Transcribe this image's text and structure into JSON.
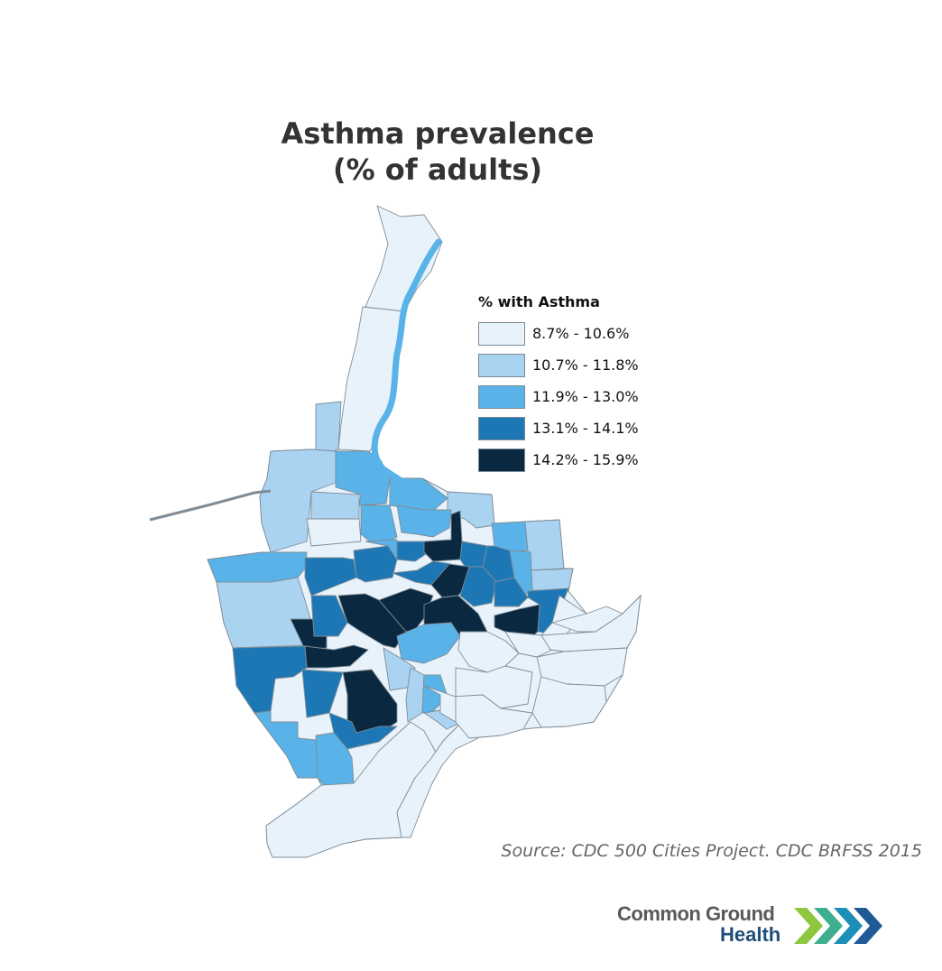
{
  "title": {
    "line1": "Asthma prevalence",
    "line2": "(% of adults)"
  },
  "legend": {
    "title": "% with Asthma",
    "classes": [
      {
        "label": "8.7% - 10.6%",
        "min": 8.7,
        "max": 10.6,
        "color": "#e8f2fb"
      },
      {
        "label": "10.7% - 11.8%",
        "min": 10.7,
        "max": 11.8,
        "color": "#aad3f2"
      },
      {
        "label": "11.9% - 13.0%",
        "min": 11.9,
        "max": 13.0,
        "color": "#5ab3e8"
      },
      {
        "label": "13.1% - 14.1%",
        "min": 13.1,
        "max": 14.1,
        "color": "#1c77b4"
      },
      {
        "label": "14.2% - 15.9%",
        "min": 14.2,
        "max": 15.9,
        "color": "#0a2940"
      }
    ]
  },
  "map": {
    "boundary_color": "#7f8c96",
    "river_color": "#5ab3e8"
  },
  "source": "Source: CDC 500 Cities Project. CDC BRFSS 2015",
  "logo": {
    "line1": "Common Ground",
    "line2": "Health",
    "chevron_colors": [
      "#8dc63f",
      "#3fae8f",
      "#1b8fb8",
      "#1f5a96"
    ]
  }
}
